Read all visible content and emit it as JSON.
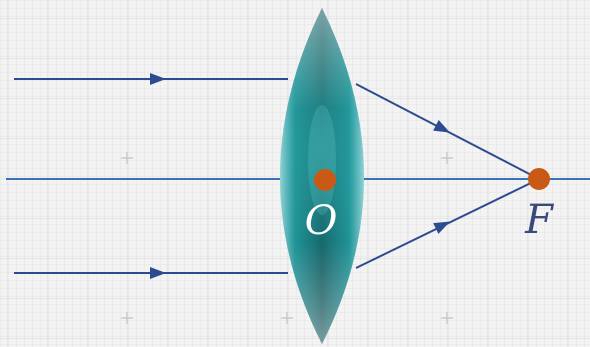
{
  "diagram": {
    "type": "convex-lens-ray-diagram",
    "labels": {
      "optical_center": "O",
      "focal_point": "F"
    },
    "colors": {
      "background": "#f3f3f3",
      "grid_fine": "#e3e3e3",
      "grid_major": "#d8d8d8",
      "grid_cross": "#c9c9c9",
      "ray": "#2d4c8f",
      "axis": "#3a72b8",
      "point": "#c85a16",
      "label": "#3a4a78",
      "label_on_lens": "#ffffff",
      "lens_edge": "#8fd3d6",
      "lens_mid": "#1c8f93",
      "lens_dark": "#0a4b50"
    }
  }
}
